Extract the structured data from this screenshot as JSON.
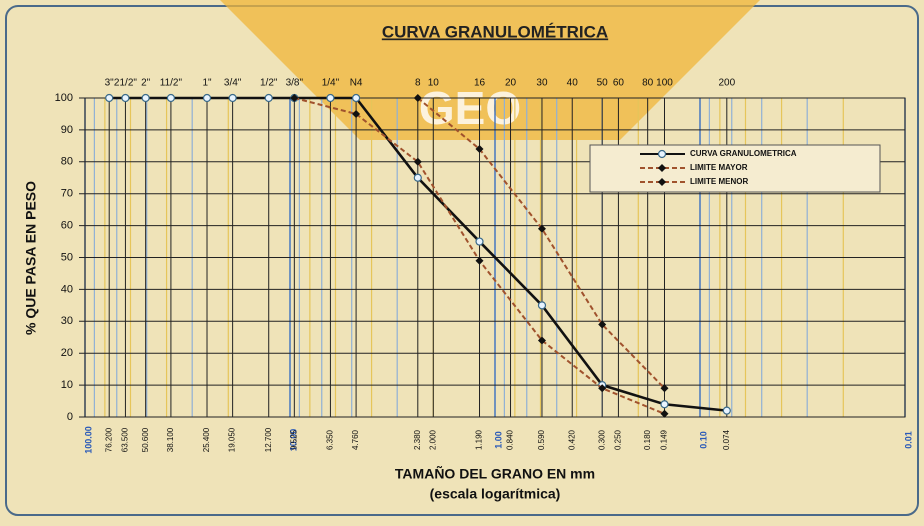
{
  "chart_data": {
    "type": "line",
    "title": "CURVA GRANULOMÉTRICA",
    "watermark": "GEO",
    "x_label": "TAMAÑO DEL GRANO EN mm",
    "x_sublabel": "(escala logarítmica)",
    "y_label": "% QUE PASA EN PESO",
    "log_x": true,
    "grid": true,
    "legend": "upper right",
    "xlim": [
      100,
      0.01
    ],
    "xticks": [
      {
        "value": 100,
        "label": "100.00"
      },
      {
        "value": 10,
        "label": "10.00"
      },
      {
        "value": 1,
        "label": "1.00"
      },
      {
        "value": 0.1,
        "label": "0.10"
      },
      0.01
    ],
    "ylim": [
      0,
      100
    ],
    "yticks": [
      0,
      10,
      20,
      30,
      40,
      50,
      60,
      70,
      80,
      90,
      100
    ],
    "sieve_names": [
      "3\"",
      "21/2\"",
      "2\"",
      "11/2\"",
      "1\"",
      "3/4\"",
      "1/2\"",
      "3/8\"",
      "1/4\"",
      "N4",
      "8",
      "10",
      "16",
      "20",
      "30",
      "40",
      "50",
      "60",
      "80",
      "100",
      "200"
    ],
    "sieve_sizes": [
      {
        "value": 76.2,
        "label": "76.200"
      },
      {
        "value": 63.5,
        "label": "63.500"
      },
      {
        "value": 50.6,
        "label": "50.600"
      },
      {
        "value": 38.1,
        "label": "38.100"
      },
      {
        "value": 25.4,
        "label": "25.400"
      },
      {
        "value": 19.05,
        "label": "19.050"
      },
      {
        "value": 12.7,
        "label": "12.700"
      },
      9.525,
      {
        "value": 6.35,
        "label": "6.350"
      },
      {
        "value": 4.76,
        "label": "4.760"
      },
      {
        "value": 2.38,
        "label": "2.380"
      },
      {
        "value": 2,
        "label": "2.000"
      },
      {
        "value": 1.19,
        "label": "1.190"
      },
      {
        "value": 0.84,
        "label": "0.840"
      },
      {
        "value": 0.59,
        "label": "0.590"
      },
      {
        "value": 0.42,
        "label": "0.420"
      },
      {
        "value": 0.3,
        "label": "0.300"
      },
      {
        "value": 0.25,
        "label": "0.250"
      },
      {
        "value": 0.18,
        "label": "0.180"
      },
      0.149,
      0.074
    ],
    "series": [
      {
        "name": "CURVA GRANULOMETRICA",
        "color": "#111111",
        "dashed": false,
        "marker": "circle",
        "x": [
          76.2,
          63.5,
          50.6,
          38.1,
          25.4,
          19.05,
          12.7,
          9.525,
          6.35,
          4.76,
          2.38,
          1.19,
          0.59,
          0.3,
          0.149,
          0.074
        ],
        "values": [
          100,
          100,
          100,
          100,
          100,
          100,
          100,
          100,
          100,
          100,
          75,
          55,
          35,
          10,
          4,
          2
        ]
      },
      {
        "name": "LIMITE MAYOR",
        "color": "#a0522d",
        "dashed": true,
        "marker": "diamond",
        "x": [
          2.38,
          1.19,
          0.59,
          0.3,
          0.149
        ],
        "values": [
          100,
          84,
          59,
          29,
          9
        ]
      },
      {
        "name": "LIMITE MENOR",
        "color": "#a0522d",
        "dashed": true,
        "marker": "diamond",
        "x": [
          9.525,
          4.76,
          2.38,
          1.19,
          0.59,
          0.3,
          0.149
        ],
        "values": [
          100,
          95,
          80,
          49,
          24,
          9,
          1
        ]
      }
    ]
  }
}
